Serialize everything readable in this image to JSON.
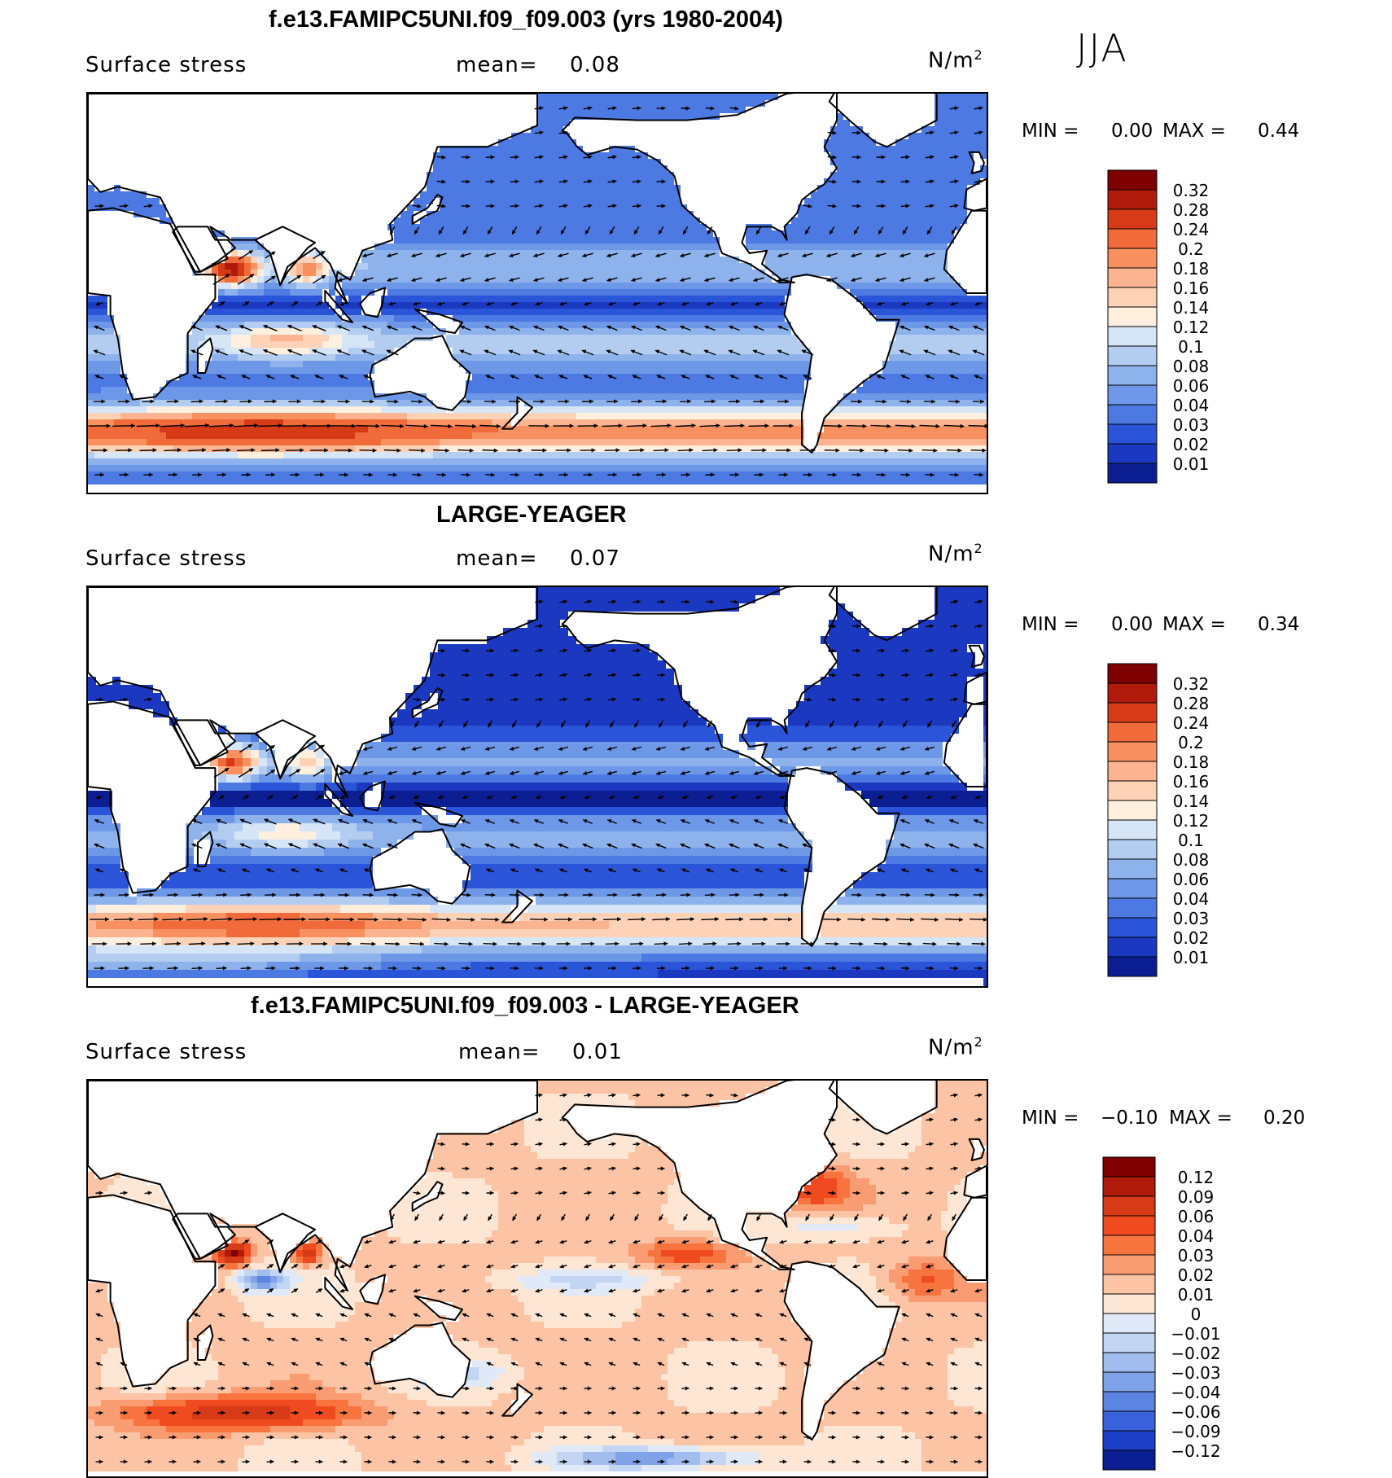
{
  "season": "JJA",
  "colors": {
    "land": "#ffffff",
    "coast": "#000000",
    "vector": "#000000"
  },
  "panels": [
    {
      "title": "f.e13.FAMIPC5UNI.f09_f09.003 (yrs 1980-2004)",
      "variable": "Surface stress",
      "mean_label": "mean=",
      "mean_value": "0.08",
      "units_base": "N/m",
      "units_exp": "2",
      "min_label": "MIN =",
      "min_value": "0.00",
      "max_label": "MAX =",
      "max_value": "0.44",
      "colorbar": {
        "labels": [
          "0.32",
          "0.28",
          "0.24",
          "0.2",
          "0.18",
          "0.16",
          "0.14",
          "0.12",
          "0.1",
          "0.08",
          "0.06",
          "0.04",
          "0.03",
          "0.02",
          "0.01"
        ],
        "colors": [
          "#7f0000",
          "#b01a0a",
          "#d73a16",
          "#f06a3a",
          "#f8915f",
          "#fbb48f",
          "#fdd2b6",
          "#feefdf",
          "#d6e6f7",
          "#b3cdf1",
          "#8eb2ec",
          "#6d97e7",
          "#4c79e2",
          "#2b55d8",
          "#1a39c0",
          "#0c1f92"
        ]
      }
    },
    {
      "title": "LARGE-YEAGER",
      "variable": "Surface stress",
      "mean_label": "mean=",
      "mean_value": "0.07",
      "units_base": "N/m",
      "units_exp": "2",
      "min_label": "MIN =",
      "min_value": "0.00",
      "max_label": "MAX =",
      "max_value": "0.34",
      "colorbar": {
        "labels": [
          "0.32",
          "0.28",
          "0.24",
          "0.2",
          "0.18",
          "0.16",
          "0.14",
          "0.12",
          "0.1",
          "0.08",
          "0.06",
          "0.04",
          "0.03",
          "0.02",
          "0.01"
        ],
        "colors": [
          "#7f0000",
          "#b01a0a",
          "#d73a16",
          "#f06a3a",
          "#f8915f",
          "#fbb48f",
          "#fdd2b6",
          "#feefdf",
          "#d6e6f7",
          "#b3cdf1",
          "#8eb2ec",
          "#6d97e7",
          "#4c79e2",
          "#2b55d8",
          "#1a39c0",
          "#0c1f92"
        ]
      }
    },
    {
      "title": "f.e13.FAMIPC5UNI.f09_f09.003 - LARGE-YEAGER",
      "variable": "Surface stress",
      "mean_label": "mean=",
      "mean_value": "0.01",
      "units_base": "N/m",
      "units_exp": "2",
      "min_label": "MIN =",
      "min_value": "−0.10",
      "max_label": "MAX =",
      "max_value": "0.20",
      "colorbar": {
        "labels": [
          "0.12",
          "0.09",
          "0.06",
          "0.04",
          "0.03",
          "0.02",
          "0.01",
          "0",
          "−0.01",
          "−0.02",
          "−0.03",
          "−0.04",
          "−0.06",
          "−0.09",
          "−0.12"
        ],
        "colors": [
          "#7f0000",
          "#b01a0a",
          "#d73a16",
          "#f04a20",
          "#f7743f",
          "#fa9c72",
          "#fcc3a4",
          "#fee6d4",
          "#dfe9f8",
          "#c2d5f3",
          "#a1bdee",
          "#7fa2e9",
          "#5c84e3",
          "#3a62dc",
          "#1d3fc7",
          "#0c1f92"
        ]
      }
    }
  ]
}
